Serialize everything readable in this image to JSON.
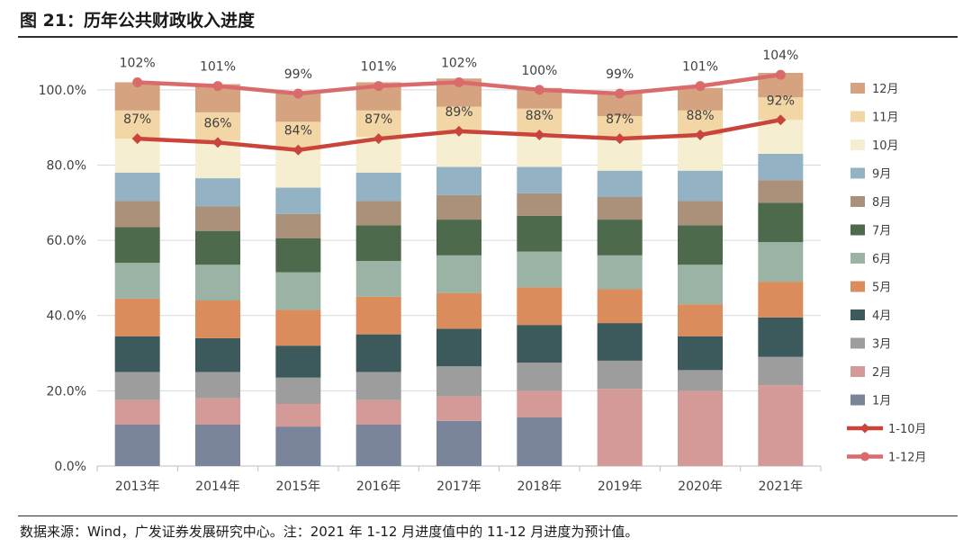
{
  "title": "图 21：历年公共财政收入进度",
  "footnote": "数据来源：Wind，广发证券发展研究中心。注：2021 年 1-12 月进度值中的 11-12 月进度为预计值。",
  "chart_data": {
    "type": "bar",
    "stacked": true,
    "categories": [
      "2013年",
      "2014年",
      "2015年",
      "2016年",
      "2017年",
      "2018年",
      "2019年",
      "2020年",
      "2021年"
    ],
    "y_ticks": [
      "0.0%",
      "20.0%",
      "40.0%",
      "60.0%",
      "80.0%",
      "100.0%"
    ],
    "ylim": [
      0,
      110
    ],
    "grid": true,
    "legend_position": "right",
    "series": [
      {
        "name": "1月",
        "color": "#7a849b",
        "values": [
          11,
          11,
          10.5,
          11,
          12,
          13,
          0,
          0,
          0
        ]
      },
      {
        "name": "2月",
        "color": "#d49a98",
        "values": [
          6.5,
          7,
          6,
          6.5,
          6.5,
          7,
          20.5,
          20,
          21.5
        ]
      },
      {
        "name": "3月",
        "color": "#9d9d9d",
        "values": [
          7.5,
          7,
          7,
          7.5,
          8,
          7.5,
          7.5,
          5.5,
          7.5
        ]
      },
      {
        "name": "4月",
        "color": "#3c5a5c",
        "values": [
          9.5,
          9,
          8.5,
          10,
          10,
          10,
          10,
          9,
          10.5
        ]
      },
      {
        "name": "5月",
        "color": "#db8c5c",
        "values": [
          10,
          10,
          9.5,
          10,
          9.5,
          10,
          9,
          8.5,
          9.5
        ]
      },
      {
        "name": "6月",
        "color": "#9bb3a4",
        "values": [
          9.5,
          9.5,
          10,
          9.5,
          10,
          9.5,
          9,
          10.5,
          10.5
        ]
      },
      {
        "name": "7月",
        "color": "#4e6a4c",
        "values": [
          9.5,
          9,
          9,
          9.5,
          9.5,
          9.5,
          9.5,
          10.5,
          10.5
        ]
      },
      {
        "name": "8月",
        "color": "#ab917a",
        "values": [
          7,
          6.5,
          6.5,
          6.5,
          6.5,
          6,
          6,
          6.5,
          6
        ]
      },
      {
        "name": "9月",
        "color": "#93b2c3",
        "values": [
          7.5,
          7.5,
          7,
          7.5,
          7.5,
          7,
          7,
          8,
          7
        ]
      },
      {
        "name": "10月",
        "color": "#f6eed0",
        "values": [
          9,
          10,
          10,
          9.5,
          9.5,
          9,
          9,
          9.5,
          9
        ]
      },
      {
        "name": "11月",
        "color": "#f2d6a6",
        "values": [
          7.5,
          7.5,
          7.5,
          7,
          6.5,
          6.5,
          5.5,
          6.5,
          6
        ]
      },
      {
        "name": "12月",
        "color": "#d6a380",
        "values": [
          7.5,
          7.5,
          7.5,
          7.5,
          7.5,
          5.5,
          6.5,
          6,
          6.5
        ]
      }
    ],
    "lines": [
      {
        "name": "1-10月",
        "color": "#c9453c",
        "marker": "diamond",
        "values": [
          87,
          86,
          84,
          87,
          89,
          88,
          87,
          88,
          92
        ],
        "labels": [
          "87%",
          "86%",
          "84%",
          "87%",
          "89%",
          "88%",
          "87%",
          "88%",
          "92%"
        ]
      },
      {
        "name": "1-12月",
        "color": "#d96b6d",
        "marker": "circle",
        "values": [
          102,
          101,
          99,
          101,
          102,
          100,
          99,
          101,
          104
        ],
        "labels": [
          "102%",
          "101%",
          "99%",
          "101%",
          "102%",
          "100%",
          "99%",
          "101%",
          "104%"
        ]
      }
    ]
  }
}
